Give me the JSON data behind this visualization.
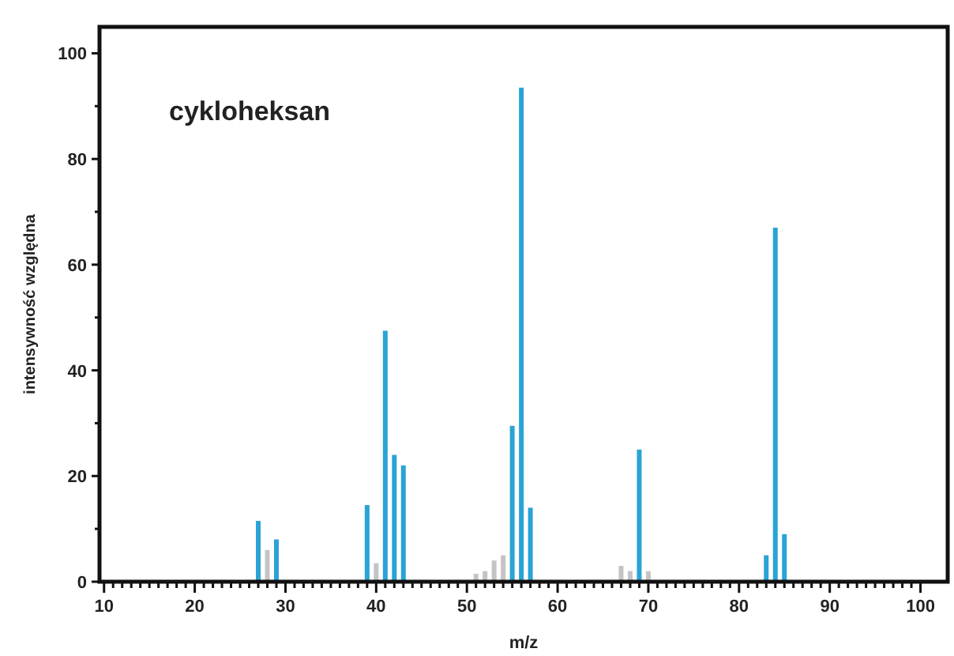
{
  "chart_data": {
    "type": "bar",
    "title": "cykloheksan",
    "xlabel": "m/z",
    "ylabel": "intensywność względna",
    "xlim": [
      9.5,
      103
    ],
    "ylim": [
      0,
      105
    ],
    "xticks": [
      10,
      {
        "value": 11,
        "label": null
      },
      {
        "value": 12,
        "label": null
      },
      {
        "value": 13,
        "label": null
      },
      {
        "value": 14,
        "label": null
      },
      {
        "value": 15,
        "label": null
      },
      {
        "value": 16,
        "label": null
      },
      {
        "value": 17,
        "label": null
      },
      {
        "value": 18,
        "label": null
      },
      {
        "value": 19,
        "label": null
      },
      20,
      {
        "value": 21,
        "label": null
      },
      {
        "value": 22,
        "label": null
      },
      {
        "value": 23,
        "label": null
      },
      {
        "value": 24,
        "label": null
      },
      {
        "value": 25,
        "label": null
      },
      {
        "value": 26,
        "label": null
      },
      {
        "value": 27,
        "label": null
      },
      {
        "value": 28,
        "label": null
      },
      {
        "value": 29,
        "label": null
      },
      30,
      {
        "value": 31,
        "label": null
      },
      {
        "value": 32,
        "label": null
      },
      {
        "value": 33,
        "label": null
      },
      {
        "value": 34,
        "label": null
      },
      {
        "value": 35,
        "label": null
      },
      {
        "value": 36,
        "label": null
      },
      {
        "value": 37,
        "label": null
      },
      {
        "value": 38,
        "label": null
      },
      {
        "value": 39,
        "label": null
      },
      40,
      {
        "value": 41,
        "label": null
      },
      {
        "value": 42,
        "label": null
      },
      {
        "value": 43,
        "label": null
      },
      {
        "value": 44,
        "label": null
      },
      {
        "value": 45,
        "label": null
      },
      {
        "value": 46,
        "label": null
      },
      {
        "value": 47,
        "label": null
      },
      {
        "value": 48,
        "label": null
      },
      {
        "value": 49,
        "label": null
      },
      50,
      {
        "value": 51,
        "label": null
      },
      {
        "value": 52,
        "label": null
      },
      {
        "value": 53,
        "label": null
      },
      {
        "value": 54,
        "label": null
      },
      {
        "value": 55,
        "label": null
      },
      {
        "value": 56,
        "label": null
      },
      {
        "value": 57,
        "label": null
      },
      {
        "value": 58,
        "label": null
      },
      {
        "value": 59,
        "label": null
      },
      60,
      {
        "value": 61,
        "label": null
      },
      {
        "value": 62,
        "label": null
      },
      {
        "value": 63,
        "label": null
      },
      {
        "value": 64,
        "label": null
      },
      {
        "value": 65,
        "label": null
      },
      {
        "value": 66,
        "label": null
      },
      {
        "value": 67,
        "label": null
      },
      {
        "value": 68,
        "label": null
      },
      {
        "value": 69,
        "label": null
      },
      70,
      {
        "value": 71,
        "label": null
      },
      {
        "value": 72,
        "label": null
      },
      {
        "value": 73,
        "label": null
      },
      {
        "value": 74,
        "label": null
      },
      {
        "value": 75,
        "label": null
      },
      {
        "value": 76,
        "label": null
      },
      {
        "value": 77,
        "label": null
      },
      {
        "value": 78,
        "label": null
      },
      {
        "value": 79,
        "label": null
      },
      80,
      {
        "value": 81,
        "label": null
      },
      {
        "value": 82,
        "label": null
      },
      {
        "value": 83,
        "label": null
      },
      {
        "value": 84,
        "label": null
      },
      {
        "value": 85,
        "label": null
      },
      {
        "value": 86,
        "label": null
      },
      {
        "value": 87,
        "label": null
      },
      {
        "value": 88,
        "label": null
      },
      {
        "value": 89,
        "label": null
      },
      90,
      {
        "value": 91,
        "label": null
      },
      {
        "value": 92,
        "label": null
      },
      {
        "value": 93,
        "label": null
      },
      {
        "value": 94,
        "label": null
      },
      {
        "value": 95,
        "label": null
      },
      {
        "value": 96,
        "label": null
      },
      {
        "value": 97,
        "label": null
      },
      {
        "value": 98,
        "label": null
      },
      {
        "value": 99,
        "label": null
      },
      100
    ],
    "yticks": [
      0,
      {
        "value": 10,
        "label": null
      },
      20,
      {
        "value": 30,
        "label": null
      },
      40,
      {
        "value": 50,
        "label": null
      },
      60,
      {
        "value": 70,
        "label": null
      },
      80,
      {
        "value": 90,
        "label": null
      },
      100
    ],
    "grid": false,
    "series": [
      {
        "color": "#2aa3d6",
        "x": [
          27,
          29,
          39,
          41,
          42,
          43,
          55,
          56,
          57,
          69,
          83,
          84,
          85
        ],
        "values": [
          11.5,
          8,
          14.5,
          47.5,
          24,
          22,
          29.5,
          93.5,
          14,
          25,
          5,
          67,
          9
        ]
      },
      {
        "color": "#c4c4c4",
        "x": [
          28,
          40,
          51,
          52,
          53,
          54,
          67,
          68,
          70
        ],
        "values": [
          6,
          3.5,
          1.5,
          2,
          4,
          5,
          3,
          2,
          2
        ]
      }
    ]
  }
}
